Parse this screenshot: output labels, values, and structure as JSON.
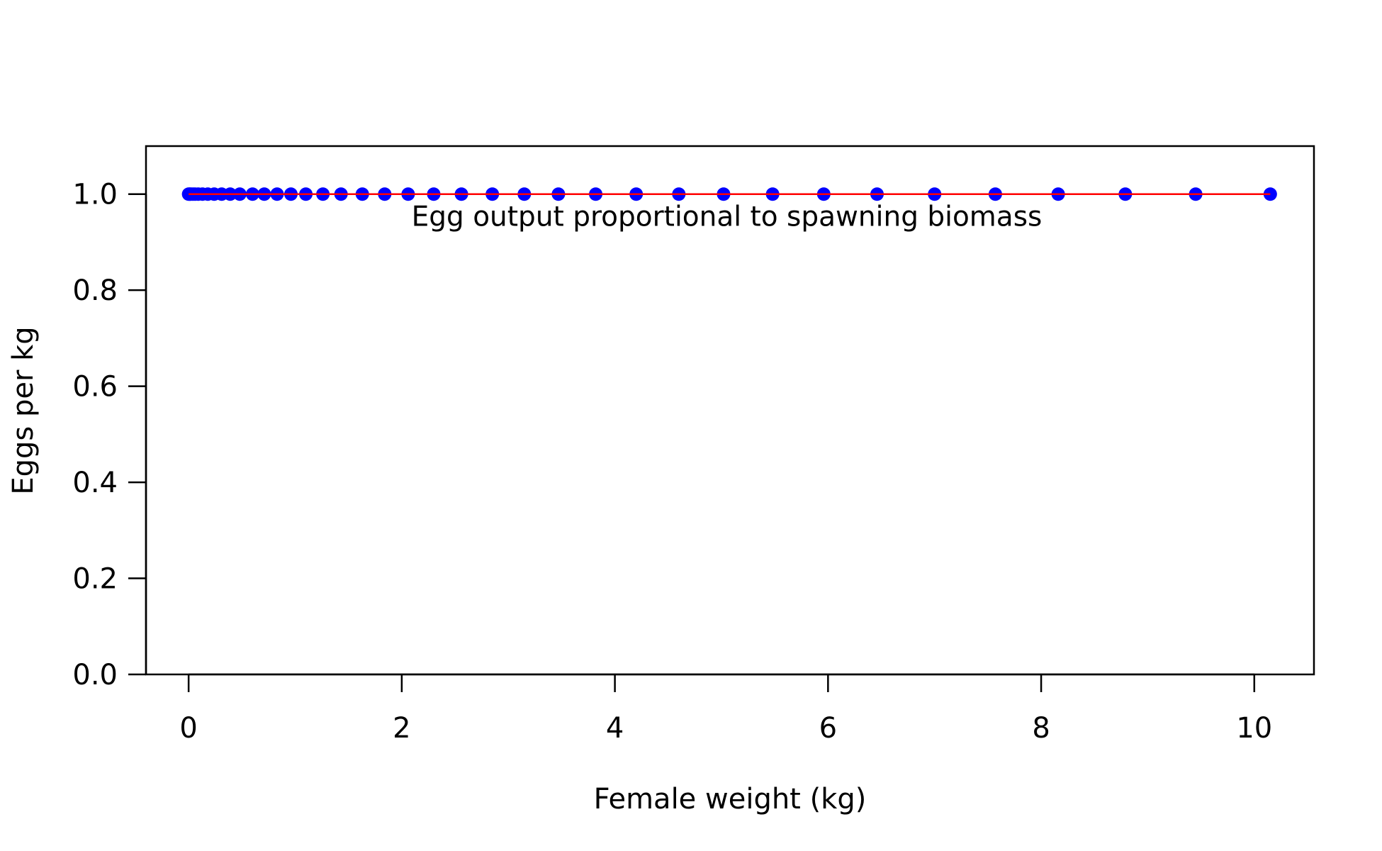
{
  "chart_data": {
    "type": "scatter",
    "xlabel": "Female weight (kg)",
    "ylabel": "Eggs per kg",
    "xlim": [
      -0.4,
      10.56
    ],
    "ylim": [
      -0.0,
      1.1
    ],
    "x_ticks": [
      0,
      2,
      4,
      6,
      8,
      10
    ],
    "y_ticks": [
      0.0,
      0.2,
      0.4,
      0.6,
      0.8,
      1.0
    ],
    "x_tick_labels": [
      "0",
      "2",
      "4",
      "6",
      "8",
      "10"
    ],
    "y_tick_labels": [
      "0.0",
      "0.2",
      "0.4",
      "0.6",
      "0.8",
      "1.0"
    ],
    "annotation": {
      "text": "Egg output proportional to spawning biomass",
      "x": 5.05,
      "y": 0.95
    },
    "series": [
      {
        "type": "scatter",
        "color": "#0000ff",
        "x": [
          0.0,
          0.01,
          0.02,
          0.04,
          0.06,
          0.09,
          0.13,
          0.18,
          0.24,
          0.31,
          0.39,
          0.48,
          0.6,
          0.71,
          0.83,
          0.96,
          1.1,
          1.26,
          1.43,
          1.63,
          1.84,
          2.06,
          2.3,
          2.56,
          2.85,
          3.15,
          3.47,
          3.82,
          4.2,
          4.6,
          5.02,
          5.48,
          5.96,
          6.46,
          7.0,
          7.57,
          8.16,
          8.79,
          9.45,
          10.15
        ],
        "y": [
          1.0,
          1.0,
          1.0,
          1.0,
          1.0,
          1.0,
          1.0,
          1.0,
          1.0,
          1.0,
          1.0,
          1.0,
          1.0,
          1.0,
          1.0,
          1.0,
          1.0,
          1.0,
          1.0,
          1.0,
          1.0,
          1.0,
          1.0,
          1.0,
          1.0,
          1.0,
          1.0,
          1.0,
          1.0,
          1.0,
          1.0,
          1.0,
          1.0,
          1.0,
          1.0,
          1.0,
          1.0,
          1.0,
          1.0,
          1.0
        ]
      },
      {
        "type": "line",
        "color": "#ff0000",
        "x": [
          0.0,
          10.15
        ],
        "y": [
          1.0,
          1.0
        ]
      }
    ]
  }
}
